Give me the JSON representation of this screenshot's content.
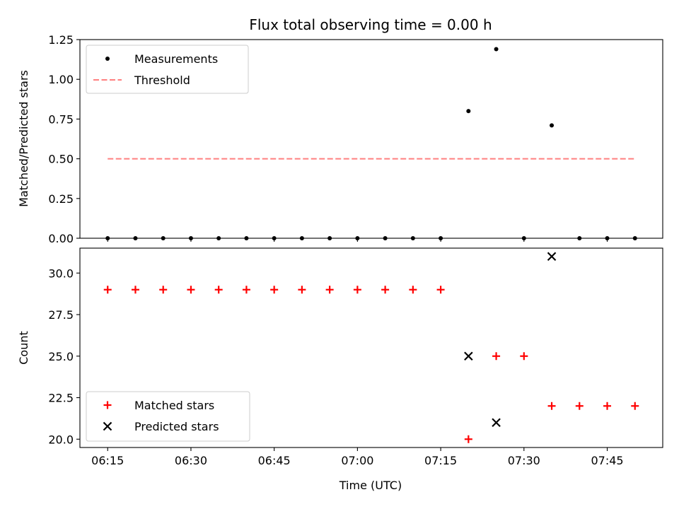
{
  "chart_data": [
    {
      "type": "scatter",
      "title": "Flux total observing time = 0.00 h",
      "xlabel": "",
      "ylabel": "Matched/Predicted stars",
      "x_ticks": [
        "06:15",
        "06:30",
        "06:45",
        "07:00",
        "07:15",
        "07:30",
        "07:45"
      ],
      "y_ticks": [
        "0.00",
        "0.25",
        "0.50",
        "0.75",
        "1.00",
        "1.25"
      ],
      "ylim": [
        0,
        1.25
      ],
      "legend_position": "top-left",
      "series": [
        {
          "name": "Measurements",
          "marker": "dot",
          "color": "#000000",
          "x": [
            "06:15",
            "06:20",
            "06:25",
            "06:30",
            "06:35",
            "06:40",
            "06:45",
            "06:50",
            "06:55",
            "07:00",
            "07:05",
            "07:10",
            "07:15",
            "07:20",
            "07:25",
            "07:30",
            "07:35",
            "07:40",
            "07:45",
            "07:50"
          ],
          "values": [
            0,
            0,
            0,
            0,
            0,
            0,
            0,
            0,
            0,
            0,
            0,
            0,
            0,
            0.8,
            1.19,
            0,
            0.71,
            0,
            0,
            0
          ]
        },
        {
          "name": "Threshold",
          "marker": "dashed-line",
          "color": "#ff8080",
          "x": [
            "06:15",
            "07:50"
          ],
          "values": [
            0.5,
            0.5
          ]
        }
      ]
    },
    {
      "type": "scatter",
      "xlabel": "Time (UTC)",
      "ylabel": "Count",
      "x_ticks": [
        "06:15",
        "06:30",
        "06:45",
        "07:00",
        "07:15",
        "07:30",
        "07:45"
      ],
      "y_ticks": [
        "20.0",
        "22.5",
        "25.0",
        "27.5",
        "30.0"
      ],
      "ylim": [
        19.5,
        31.5
      ],
      "legend_position": "bottom-left",
      "series": [
        {
          "name": "Matched stars",
          "marker": "plus",
          "color": "#ff0000",
          "x": [
            "06:15",
            "06:20",
            "06:25",
            "06:30",
            "06:35",
            "06:40",
            "06:45",
            "06:50",
            "06:55",
            "07:00",
            "07:05",
            "07:10",
            "07:15",
            "07:20",
            "07:25",
            "07:30",
            "07:35",
            "07:40",
            "07:45",
            "07:50"
          ],
          "values": [
            29,
            29,
            29,
            29,
            29,
            29,
            29,
            29,
            29,
            29,
            29,
            29,
            29,
            20,
            25,
            25,
            22,
            22,
            22,
            22
          ]
        },
        {
          "name": "Predicted stars",
          "marker": "x",
          "color": "#000000",
          "x": [
            "07:20",
            "07:25",
            "07:35"
          ],
          "values": [
            25,
            21,
            31
          ]
        }
      ]
    }
  ]
}
